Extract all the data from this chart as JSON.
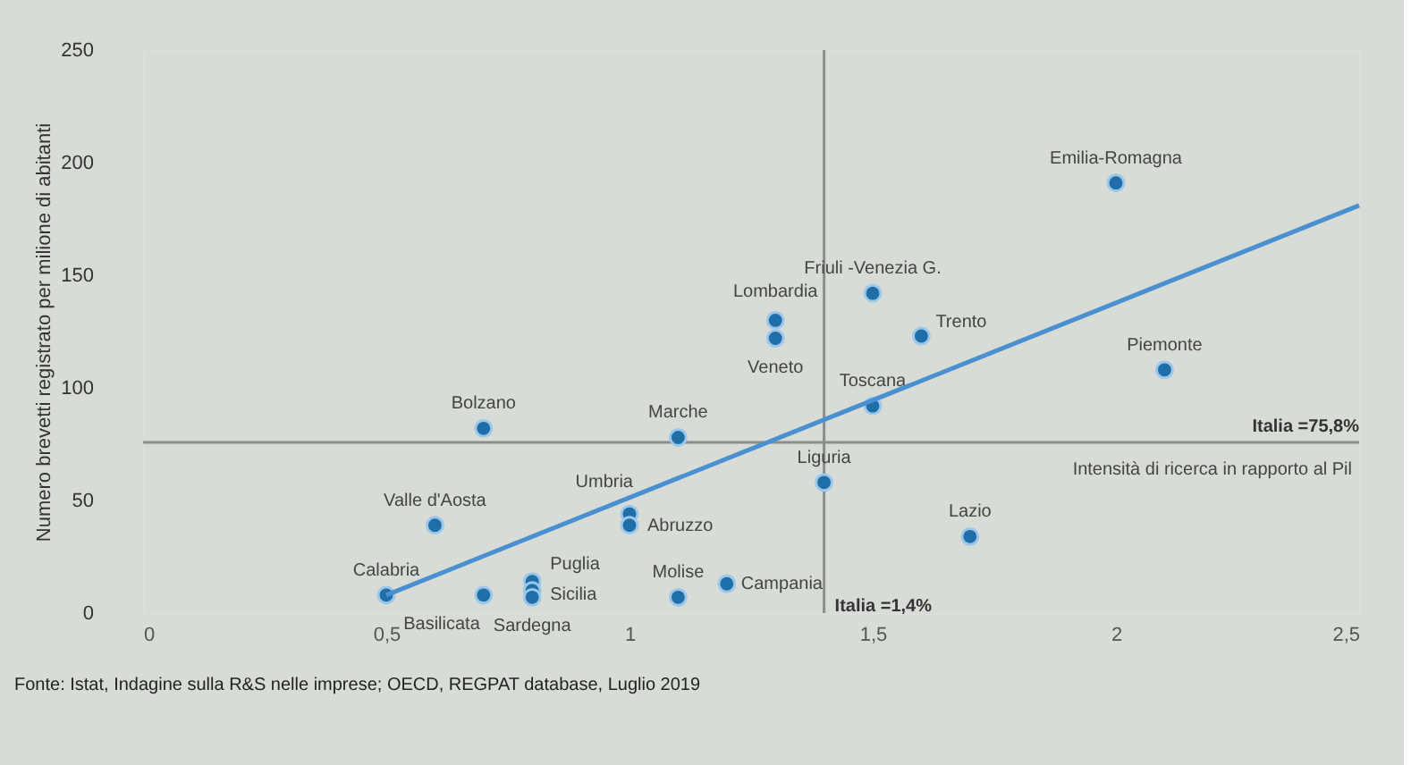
{
  "chart_data": {
    "type": "scatter",
    "ylabel": "Numero brevetti registrato per milione di abitanti",
    "xlabel": "Intensità di ricerca in rapporto al Pil",
    "xlim": [
      0,
      2.5
    ],
    "ylim": [
      0,
      250
    ],
    "xticks": [
      0,
      {
        "value": 0.5,
        "label": "0,5"
      },
      1,
      {
        "value": 1.5,
        "label": "1,5"
      },
      2,
      {
        "value": 2.5,
        "label": "2,5"
      }
    ],
    "yticks": [
      0,
      50,
      100,
      150,
      200,
      250
    ],
    "grid": false,
    "series": [
      {
        "color": "#1f6ea8",
        "marker": "circle",
        "x": [
          2.0,
          1.5,
          1.6,
          1.3,
          1.3,
          2.1,
          1.5,
          0.7,
          1.1,
          1.4,
          0.6,
          1.0,
          1.0,
          1.7,
          0.5,
          0.7,
          0.8,
          0.8,
          0.8,
          1.1,
          1.2
        ],
        "values": [
          191,
          142,
          123,
          130,
          122,
          108,
          92,
          82,
          78,
          58,
          39,
          44,
          39,
          34,
          8,
          8,
          14,
          10,
          7,
          7,
          13
        ],
        "value_labels": [
          "Emilia-Romagna",
          "Friuli -Venezia G.",
          "Trento",
          "Lombardia",
          "Veneto",
          "Piemonte",
          "Toscana",
          "Bolzano",
          "Marche",
          "Liguria",
          "Valle d'Aosta",
          "Umbria",
          "Abruzzo",
          "Lazio",
          "Calabria",
          "Basilicata",
          "Puglia",
          "Sicilia",
          "Sardegna",
          "Molise",
          "Campania"
        ]
      },
      {
        "type": "line",
        "color": "#4a8fd0",
        "x": [
          0.5,
          2.5
        ],
        "values": [
          8,
          181
        ]
      }
    ],
    "ref_lines": [
      {
        "axis": "y",
        "value": 75.8,
        "label": "Italia =75,8%",
        "color": "#8a8d8a"
      },
      {
        "axis": "x",
        "value": 1.4,
        "label": "Italia =1,4%",
        "color": "#8a8d8a"
      }
    ],
    "annotations": [
      "Fonte: Istat, Indagine sulla R&S nelle imprese; OECD, REGPAT database, Luglio 2019"
    ]
  }
}
